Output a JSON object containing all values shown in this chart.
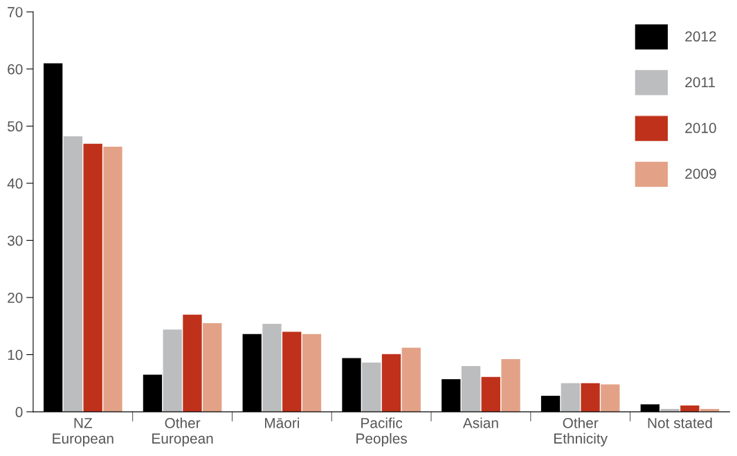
{
  "chart_data": {
    "type": "bar",
    "categories": [
      "NZ\nEuropean",
      "Other\nEuropean",
      "Māori",
      "Pacific\nPeoples",
      "Asian",
      "Other\nEthnicity",
      "Not stated"
    ],
    "series": [
      {
        "name": "2012",
        "color": "#000000",
        "values": [
          61.0,
          6.5,
          13.6,
          9.4,
          5.7,
          2.8,
          1.3
        ]
      },
      {
        "name": "2011",
        "color": "#bcbdbf",
        "values": [
          48.2,
          14.4,
          15.4,
          8.6,
          8.0,
          5.0,
          0.5
        ]
      },
      {
        "name": "2010",
        "color": "#bf311a",
        "values": [
          46.9,
          17.0,
          14.0,
          10.1,
          6.1,
          5.0,
          1.1
        ]
      },
      {
        "name": "2009",
        "color": "#e3a287",
        "values": [
          46.4,
          15.5,
          13.6,
          11.2,
          9.2,
          4.8,
          0.5
        ]
      }
    ],
    "ylim": [
      0,
      70
    ],
    "yticks": [
      0,
      10,
      20,
      30,
      40,
      50,
      60,
      70
    ],
    "grid": false,
    "legend": "top right"
  }
}
